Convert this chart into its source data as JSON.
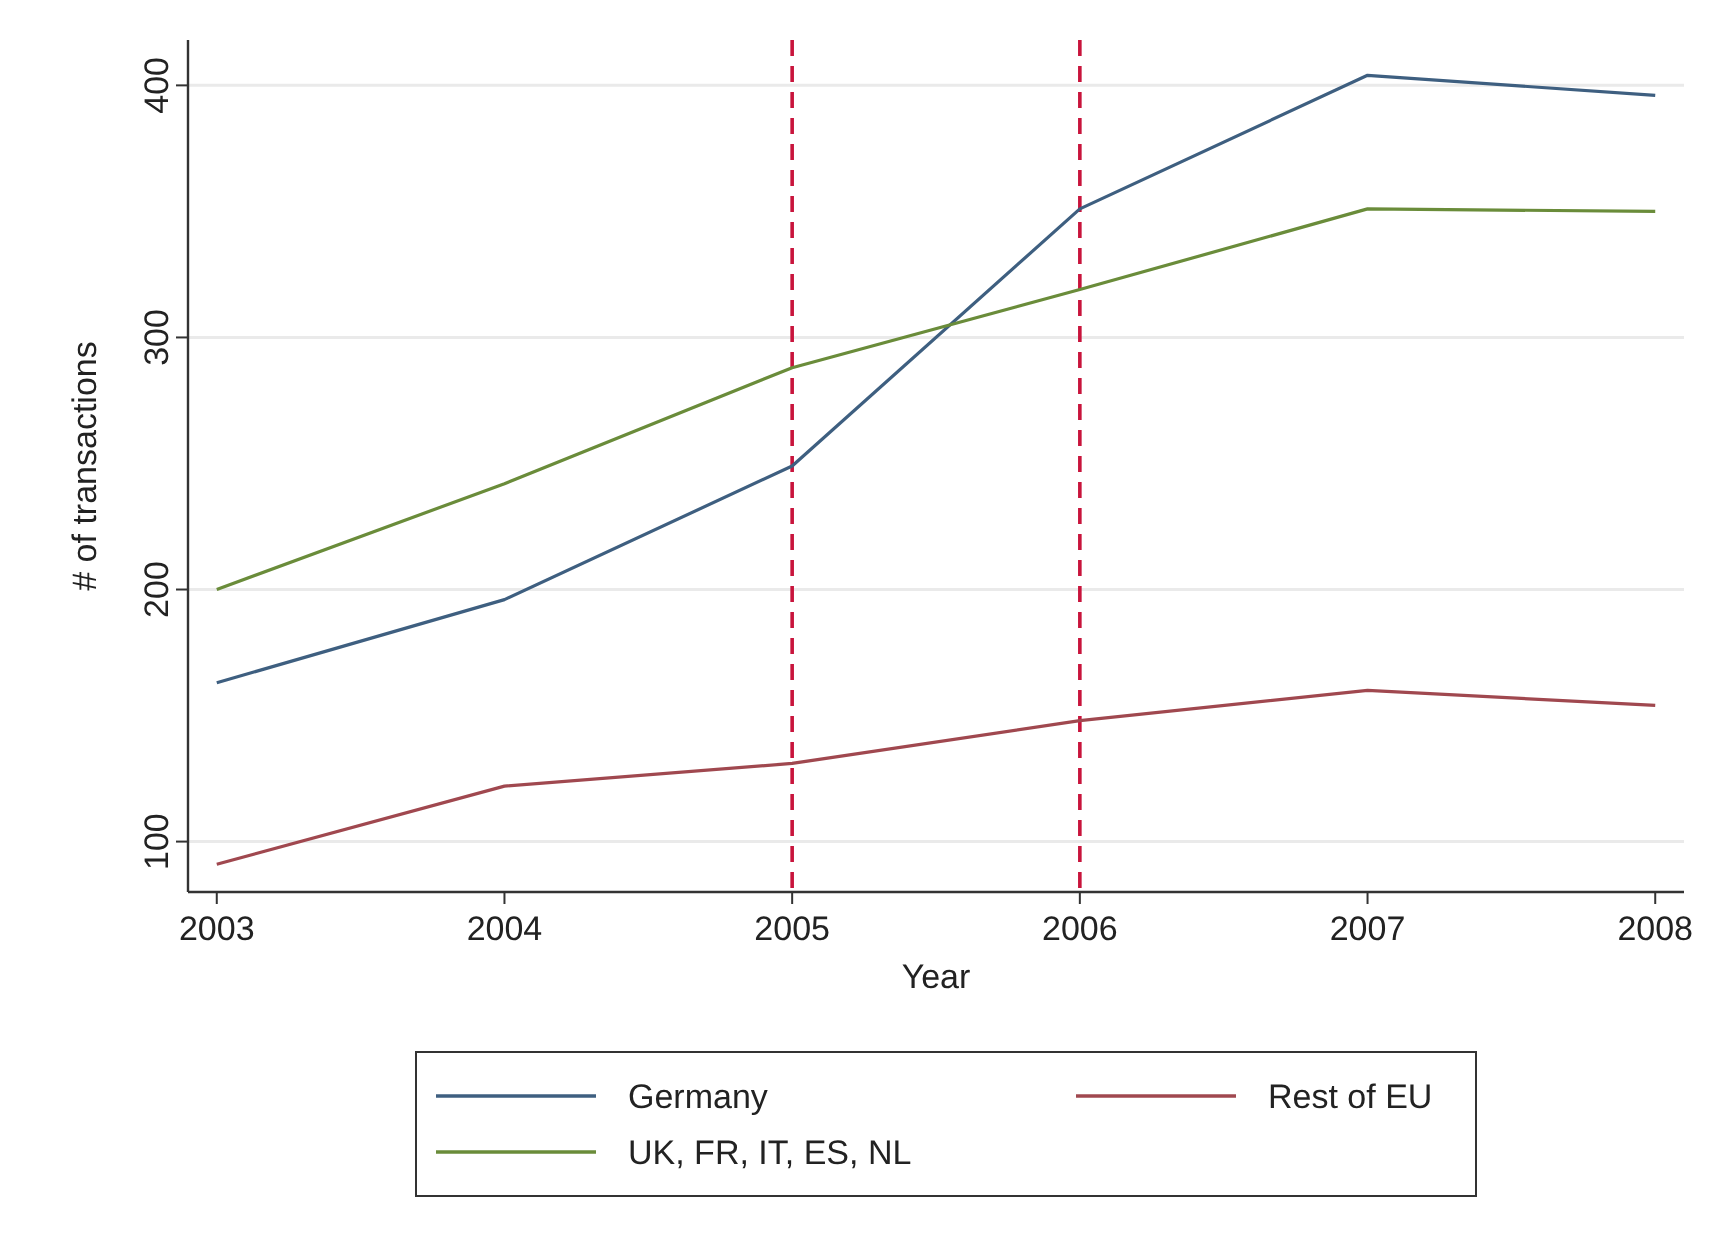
{
  "chart_data": {
    "type": "line",
    "xlabel": "Year",
    "ylabel": "# of transactions",
    "x": [
      2003,
      2004,
      2005,
      2006,
      2007,
      2008
    ],
    "series": [
      {
        "name": "Germany",
        "color": "#3e5f80",
        "values": [
          163,
          196,
          249,
          351,
          404,
          396
        ]
      },
      {
        "name": "UK, FR, IT, ES, NL",
        "color": "#6a8c3a",
        "values": [
          200,
          242,
          288,
          319,
          351,
          350
        ]
      },
      {
        "name": "Rest of EU",
        "color": "#a0484f",
        "values": [
          91,
          122,
          131,
          148,
          160,
          154
        ]
      }
    ],
    "xlim": [
      2002.9,
      2008.1
    ],
    "xticks": [
      2003,
      2004,
      2005,
      2006,
      2007,
      2008
    ],
    "ylim": [
      80,
      418
    ],
    "yticks": [
      100,
      200,
      300,
      400
    ],
    "grid": "y",
    "legend": "bottom",
    "line_style": "solid",
    "marker": "none",
    "ref_lines": [
      {
        "axis": "x",
        "value": 2005,
        "color": "#c8143c",
        "line_style": "dashed"
      },
      {
        "axis": "x",
        "value": 2006,
        "color": "#c8143c",
        "line_style": "dashed"
      }
    ]
  }
}
